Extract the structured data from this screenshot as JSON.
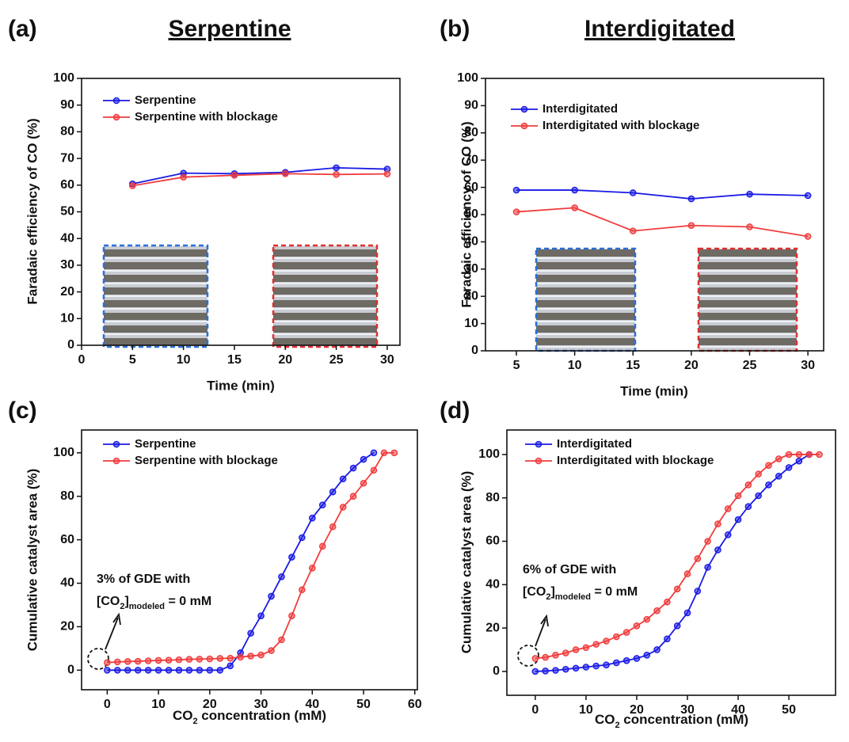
{
  "chart_data": [
    {
      "type": "line",
      "label": "(a)",
      "title": "Serpentine",
      "ylabel": "Faradaic efficiency of CO (%)",
      "xlabel": "Time (min)",
      "x": [
        5,
        10,
        15,
        20,
        25,
        30
      ],
      "xlim": [
        0,
        31.25
      ],
      "xticks": [
        0,
        5,
        10,
        15,
        20,
        25,
        30
      ],
      "ylim": [
        0,
        100
      ],
      "yticks": [
        0,
        10,
        20,
        30,
        40,
        50,
        60,
        70,
        80,
        90,
        100
      ],
      "legend": "upper left",
      "series": [
        {
          "name": "Serpentine",
          "color": "#1a1ae6",
          "values": [
            60.5,
            64.5,
            64.3,
            64.8,
            66.5,
            66
          ]
        },
        {
          "name": "Serpentine with blockage",
          "color": "#f03c3c",
          "values": [
            59.8,
            63,
            63.7,
            64.3,
            64,
            64.2
          ]
        }
      ]
    },
    {
      "type": "line",
      "label": "(b)",
      "title": "Interdigitated",
      "ylabel": "Faradaic efficiency of CO (%)",
      "xlabel": "Time (min)",
      "x": [
        5,
        10,
        15,
        20,
        25,
        30
      ],
      "xlim": [
        2.35,
        31.35
      ],
      "xticks": [
        5,
        10,
        15,
        20,
        25,
        30
      ],
      "ylim": [
        0,
        100
      ],
      "yticks": [
        0,
        10,
        20,
        30,
        40,
        50,
        60,
        70,
        80,
        90,
        100
      ],
      "legend": "upper left",
      "series": [
        {
          "name": "Interdigitated",
          "color": "#1a1ae6",
          "values": [
            59,
            59,
            58,
            55.8,
            57.5,
            57
          ]
        },
        {
          "name": "Interdigitated with blockage",
          "color": "#f03c3c",
          "values": [
            51,
            52.5,
            44,
            46,
            45.5,
            42
          ]
        }
      ]
    },
    {
      "type": "line",
      "label": "(c)",
      "ylabel": "Cumulative catalyst area (%)",
      "xlabel": [
        "CO",
        "2",
        " concentration (mM)"
      ],
      "xlim": [
        -5,
        60.5
      ],
      "xticks": [
        0,
        10,
        20,
        30,
        40,
        50,
        60
      ],
      "ylim": [
        -9,
        110.5
      ],
      "yticks": [
        0,
        20,
        40,
        60,
        80,
        100
      ],
      "legend": "upper left",
      "annotation": [
        "3% of GDE with",
        [
          "[CO",
          "2",
          "]",
          "modeled",
          " = 0 mM"
        ]
      ],
      "series": [
        {
          "name": "Serpentine",
          "color": "#1a1ae6",
          "x": [
            0,
            2,
            4,
            6,
            8,
            10,
            12,
            14,
            16,
            18,
            20,
            22,
            24,
            26,
            28,
            30,
            32,
            34,
            36,
            38,
            40,
            42,
            44,
            46,
            48,
            50,
            52
          ],
          "values": [
            0,
            0,
            0,
            0,
            0,
            0,
            0,
            0,
            0,
            0,
            0,
            0,
            2,
            8,
            17,
            25,
            34,
            43,
            52,
            61,
            70,
            76,
            82,
            88,
            93,
            97,
            100
          ]
        },
        {
          "name": "Serpentine with blockage",
          "color": "#f03c3c",
          "x": [
            0,
            2,
            4,
            6,
            8,
            10,
            12,
            14,
            16,
            18,
            20,
            22,
            24,
            26,
            28,
            30,
            32,
            34,
            36,
            38,
            40,
            42,
            44,
            46,
            48,
            50,
            52,
            54,
            56
          ],
          "values": [
            3.5,
            3.8,
            4,
            4.1,
            4.3,
            4.5,
            4.6,
            4.8,
            5,
            5.1,
            5.2,
            5.4,
            5.5,
            6,
            6.5,
            7,
            9,
            14,
            25,
            37,
            47,
            57,
            66,
            75,
            80,
            86,
            92,
            100,
            100
          ]
        }
      ]
    },
    {
      "type": "line",
      "label": "(d)",
      "ylabel": "Cumulative catalyst area (%)",
      "xlabel": [
        "CO",
        "2",
        " concentration (mM)"
      ],
      "xlim": [
        -5.6,
        59.2
      ],
      "xticks": [
        0,
        10,
        20,
        30,
        40,
        50
      ],
      "ylim": [
        -11,
        111.3
      ],
      "yticks": [
        0,
        20,
        40,
        60,
        80,
        100
      ],
      "legend": "upper left",
      "annotation": [
        "6% of GDE with",
        [
          "[CO",
          "2",
          "]",
          "modeled",
          " = 0 mM"
        ]
      ],
      "series": [
        {
          "name": "Interdigitated",
          "color": "#1a1ae6",
          "x": [
            0,
            2,
            4,
            6,
            8,
            10,
            12,
            14,
            16,
            18,
            20,
            22,
            24,
            26,
            28,
            30,
            32,
            34,
            36,
            38,
            40,
            42,
            44,
            46,
            48,
            50,
            52,
            54
          ],
          "values": [
            0,
            0.2,
            0.5,
            1,
            1.5,
            2,
            2.5,
            3,
            4,
            5,
            6,
            7.5,
            10,
            15,
            21,
            27,
            37,
            48,
            56,
            63,
            70,
            76,
            81,
            86,
            90,
            94,
            97,
            100
          ]
        },
        {
          "name": "Interdigitated with blockage",
          "color": "#f03c3c",
          "x": [
            0,
            2,
            4,
            6,
            8,
            10,
            12,
            14,
            16,
            18,
            20,
            22,
            24,
            26,
            28,
            30,
            32,
            34,
            36,
            38,
            40,
            42,
            44,
            46,
            48,
            50,
            52,
            54,
            56
          ],
          "values": [
            6,
            6.5,
            7.5,
            8.5,
            10,
            11,
            12.5,
            14,
            16,
            18,
            21,
            24,
            28,
            32,
            38,
            45,
            52,
            60,
            68,
            75,
            81,
            86,
            91,
            95,
            98,
            100,
            100,
            100,
            100
          ]
        }
      ]
    }
  ]
}
